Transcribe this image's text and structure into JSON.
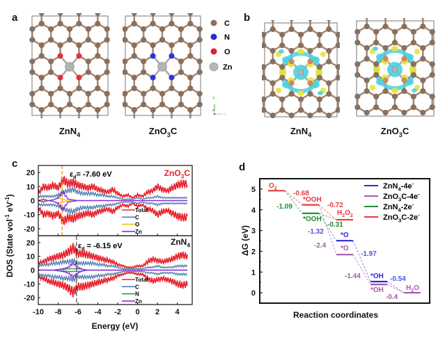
{
  "panels": {
    "a": {
      "letter": "a",
      "structures": [
        "ZnN4",
        "ZnO3C"
      ],
      "dopant_colors": [
        "#e0303a",
        "#2b35d8"
      ],
      "legend": [
        {
          "label": "C",
          "color": "#8b705e"
        },
        {
          "label": "N",
          "color": "#2430d8"
        },
        {
          "label": "O",
          "color": "#e0202a"
        },
        {
          "label": "Zn",
          "color": "#b8b8b8"
        }
      ],
      "axes_gizmo": {
        "y": "Y",
        "z": "Z",
        "x": "X"
      }
    },
    "b": {
      "letter": "b",
      "structures": [
        "ZnN4",
        "ZnO3C"
      ],
      "isosurface_colors": {
        "depletion": "#4fd0de",
        "accumulation": "#e6e23c"
      }
    }
  },
  "chart_data": [
    {
      "panel": "c",
      "type": "line",
      "xlabel": "Energy (eV)",
      "ylabel": "DOS (State vol-1 eV-1)",
      "xlim": [
        -10,
        5.5
      ],
      "xticks": [
        -10,
        -8,
        -6,
        -4,
        -2,
        0,
        2,
        4
      ],
      "yticks": [
        20,
        10,
        0,
        -10,
        -20
      ],
      "ylim": [
        -25,
        25
      ],
      "spin_symmetric": true,
      "x": [
        -10,
        -9.5,
        -9,
        -8.5,
        -8,
        -7.5,
        -7,
        -6.5,
        -6,
        -5.5,
        -5,
        -4.5,
        -4,
        -3.5,
        -3,
        -2.5,
        -2,
        -1.5,
        -1,
        -0.5,
        0,
        0.5,
        1,
        1.5,
        2,
        2.5,
        3,
        3.5,
        4,
        4.5,
        5
      ],
      "subplots": [
        {
          "title": "ZnO3C",
          "title_color": "#e8202a",
          "d_band_center": {
            "symbol": "ε",
            "sub": "d",
            "text": "= -7.60 eV",
            "value": -7.6,
            "line_color": "#f0a030"
          },
          "series": [
            {
              "name": "Total",
              "color": "#e8202a",
              "values": [
                5,
                10,
                9,
                11,
                9,
                15,
                12,
                13,
                11,
                10,
                9,
                10,
                8,
                7,
                6,
                8,
                5,
                3,
                4,
                2,
                4,
                3,
                6,
                7,
                10,
                8,
                7,
                9,
                11,
                12,
                12
              ]
            },
            {
              "name": "C",
              "color": "#4f7fae",
              "values": [
                3,
                3,
                3,
                3,
                4,
                6,
                7,
                8,
                6,
                5,
                5,
                5,
                4,
                4,
                3,
                3,
                2,
                1,
                1,
                1,
                2,
                1,
                2,
                2,
                3,
                2,
                2,
                2,
                2,
                2,
                2
              ]
            },
            {
              "name": "O",
              "color": "#f2c21a",
              "values": [
                0,
                0,
                0,
                0.5,
                2,
                1,
                0,
                0,
                0,
                0,
                0,
                0,
                0,
                0,
                0,
                0,
                0,
                0,
                0,
                0,
                0,
                0,
                0,
                0,
                0,
                0,
                0,
                0,
                0,
                0,
                0
              ]
            },
            {
              "name": "Zn",
              "color": "#8a2be2",
              "values": [
                0,
                1,
                0,
                0.5,
                2,
                6,
                1,
                0.5,
                0,
                0,
                0,
                0,
                0,
                0,
                0,
                0,
                0,
                0,
                0,
                0,
                0,
                0,
                0,
                0,
                0,
                0,
                0,
                0,
                0,
                0,
                0
              ]
            }
          ]
        },
        {
          "title": "ZnN4",
          "title_color": "#111111",
          "d_band_center": {
            "symbol": "ε",
            "sub": "d",
            "text": " = -6.15 eV",
            "value": -6.15,
            "line_color": "#222222"
          },
          "series": [
            {
              "name": "Total",
              "color": "#e8202a",
              "values": [
                5,
                6,
                8,
                9,
                10,
                11,
                13,
                16,
                12,
                12,
                11,
                10,
                9,
                8,
                7,
                6,
                4,
                3,
                2,
                2,
                3,
                3,
                6,
                8,
                7,
                6,
                7,
                8,
                10,
                11,
                10
              ]
            },
            {
              "name": "C",
              "color": "#4f7fae",
              "values": [
                3,
                4,
                4,
                5,
                5,
                6,
                6,
                7,
                5,
                5,
                5,
                5,
                4,
                4,
                3,
                3,
                2,
                1,
                1,
                1,
                1,
                1,
                2,
                2,
                3,
                2,
                2,
                2,
                3,
                3,
                3
              ]
            },
            {
              "name": "N",
              "color": "#2e9a4a",
              "values": [
                0,
                0,
                0,
                0,
                0.5,
                0.5,
                1,
                1,
                1,
                0.5,
                0,
                0,
                0,
                0,
                0,
                0,
                0,
                0,
                0,
                0,
                0,
                0,
                0,
                0,
                0,
                0,
                0,
                0,
                0,
                0,
                0
              ]
            },
            {
              "name": "Zn",
              "color": "#8a2be2",
              "values": [
                0,
                0,
                0,
                0,
                0.5,
                1,
                2,
                5,
                2,
                0.5,
                0,
                0,
                0,
                0,
                0,
                0,
                0,
                0,
                0,
                0,
                0,
                0,
                0,
                0,
                0,
                0,
                0,
                0,
                0,
                0,
                0
              ]
            }
          ]
        }
      ]
    },
    {
      "panel": "d",
      "type": "line",
      "xlabel": "Reaction coordinates",
      "ylabel": "ΔG (eV)",
      "ylim": [
        -0.5,
        5.5
      ],
      "yticks": [
        0,
        1,
        2,
        3,
        4,
        5
      ],
      "legend": [
        {
          "name": "ZnN4-4e-",
          "color": "#2a2ad8"
        },
        {
          "name": "ZnO3C-4e-",
          "color": "#a55aa8"
        },
        {
          "name": "ZnN4-2e-",
          "color": "#1e8a2e"
        },
        {
          "name": "ZnO3C-2e-",
          "color": "#e8383d"
        }
      ],
      "levels": [
        {
          "label": "O2",
          "step": 0,
          "dG": 4.92,
          "color": "#e8383d"
        },
        {
          "label": "*OOH",
          "step": 1,
          "dG": 4.24,
          "color": "#e8383d"
        },
        {
          "label": "*OOH",
          "step": 1,
          "dG": 3.83,
          "color": "#1e8a2e"
        },
        {
          "label": "H2O2",
          "step": 2,
          "dG": 3.52,
          "color": "#e8383d"
        },
        {
          "label": "*O",
          "step": 2,
          "dG": 2.51,
          "color": "#2a2ad8"
        },
        {
          "label": "*O",
          "step": 2,
          "dG": 1.84,
          "color": "#a55aa8"
        },
        {
          "label": "*OH",
          "step": 3,
          "dG": 0.54,
          "color": "#2a2ad8"
        },
        {
          "label": "*OH",
          "step": 3,
          "dG": 0.4,
          "color": "#a55aa8"
        },
        {
          "label": "H2O",
          "step": 4,
          "dG": 0.0,
          "color": "#a55aa8"
        }
      ],
      "transitions": [
        {
          "from": 0,
          "to": 1,
          "value": "-0.68",
          "color": "#e8383d"
        },
        {
          "from": 0,
          "to": 2,
          "value": "-1.09",
          "color": "#1e8a2e"
        },
        {
          "from": 1,
          "to": 3,
          "value": "-0.72",
          "color": "#e8383d"
        },
        {
          "from": 2,
          "to": 3,
          "value": "-0.31",
          "color": "#1e8a2e"
        },
        {
          "from": 2,
          "to": 4,
          "value": "-1.32",
          "color": "#5050e0"
        },
        {
          "from": 1,
          "to": 5,
          "value": "-2.4",
          "color": "#a55aa8"
        },
        {
          "from": 4,
          "to": 6,
          "value": "-1.97",
          "color": "#5050e0"
        },
        {
          "from": 5,
          "to": 7,
          "value": "-1.44",
          "color": "#a55aa8"
        },
        {
          "from": 6,
          "to": 8,
          "value": "-0.54",
          "color": "#5050e0"
        },
        {
          "from": 7,
          "to": 8,
          "value": "-0.4",
          "color": "#a55aa8"
        }
      ]
    }
  ]
}
